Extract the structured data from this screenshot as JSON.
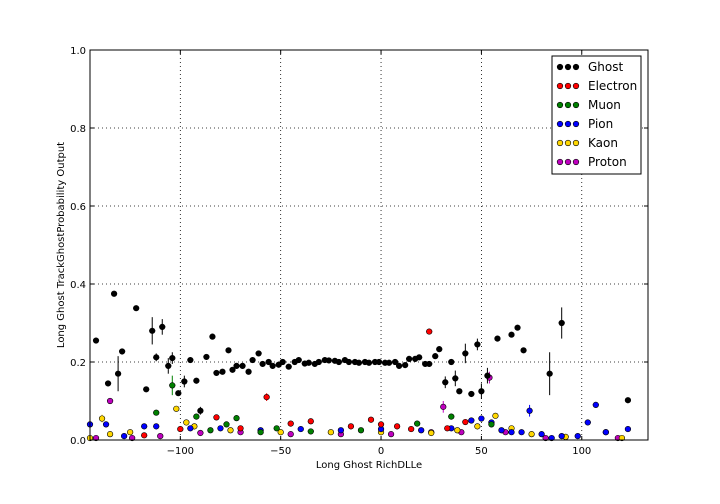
{
  "chart_data": {
    "type": "scatter",
    "title": "",
    "xlabel": "Long Ghost RichDLLe",
    "ylabel": "Long Ghost TrackGhostProbability Output",
    "xlim": [
      -145,
      133
    ],
    "ylim": [
      0,
      1
    ],
    "xticks": [
      -100,
      -50,
      0,
      50,
      100
    ],
    "yticks": [
      0.0,
      0.2,
      0.4,
      0.6,
      0.8,
      1.0
    ],
    "grid": true,
    "legend_position": "top-right",
    "series": [
      {
        "name": "Ghost",
        "color": "#000000",
        "points": [
          [
            -142,
            0.255,
            0.004
          ],
          [
            -136,
            0.145,
            0.004
          ],
          [
            -133,
            0.375,
            0.004
          ],
          [
            -131,
            0.17,
            0.045
          ],
          [
            -129,
            0.227,
            0.004
          ],
          [
            -122,
            0.338,
            0.004
          ],
          [
            -117,
            0.13,
            0.004
          ],
          [
            -114,
            0.28,
            0.035
          ],
          [
            -112,
            0.212,
            0.01
          ],
          [
            -109,
            0.29,
            0.02
          ],
          [
            -106,
            0.19,
            0.02
          ],
          [
            -104,
            0.21,
            0.015
          ],
          [
            -101,
            0.12,
            0.004
          ],
          [
            -98,
            0.15,
            0.015
          ],
          [
            -95,
            0.205,
            0.004
          ],
          [
            -92,
            0.152,
            0.004
          ],
          [
            -90,
            0.075,
            0.01
          ],
          [
            -87,
            0.213,
            0.004
          ],
          [
            -84,
            0.265,
            0.004
          ],
          [
            -82,
            0.172,
            0.004
          ],
          [
            -79,
            0.175,
            0.004
          ],
          [
            -76,
            0.23,
            0.004
          ],
          [
            -74,
            0.18,
            0.004
          ],
          [
            -72,
            0.19,
            0.004
          ],
          [
            -69,
            0.19,
            0.004
          ],
          [
            -66,
            0.175,
            0.004
          ],
          [
            -64,
            0.205,
            0.004
          ],
          [
            -61,
            0.222,
            0.004
          ],
          [
            -59,
            0.195,
            0.004
          ],
          [
            -56,
            0.2,
            0.004
          ],
          [
            -54,
            0.19,
            0.004
          ],
          [
            -51,
            0.193,
            0.004
          ],
          [
            -49,
            0.2,
            0.004
          ],
          [
            -46,
            0.188,
            0.004
          ],
          [
            -43,
            0.2,
            0.004
          ],
          [
            -41,
            0.205,
            0.004
          ],
          [
            -38,
            0.196,
            0.004
          ],
          [
            -36,
            0.198,
            0.004
          ],
          [
            -33,
            0.195,
            0.004
          ],
          [
            -31,
            0.2,
            0.004
          ],
          [
            -28,
            0.205,
            0.004
          ],
          [
            -26,
            0.204,
            0.004
          ],
          [
            -23,
            0.203,
            0.004
          ],
          [
            -21,
            0.2,
            0.004
          ],
          [
            -18,
            0.205,
            0.004
          ],
          [
            -16,
            0.2,
            0.004
          ],
          [
            -13,
            0.2,
            0.004
          ],
          [
            -11,
            0.198,
            0.004
          ],
          [
            -8,
            0.2,
            0.004
          ],
          [
            -6,
            0.198,
            0.004
          ],
          [
            -3,
            0.2,
            0.004
          ],
          [
            -1,
            0.2,
            0.004
          ],
          [
            2,
            0.198,
            0.004
          ],
          [
            4,
            0.198,
            0.004
          ],
          [
            7,
            0.2,
            0.004
          ],
          [
            9,
            0.19,
            0.004
          ],
          [
            12,
            0.192,
            0.004
          ],
          [
            14,
            0.208,
            0.004
          ],
          [
            17,
            0.208,
            0.004
          ],
          [
            19,
            0.212,
            0.004
          ],
          [
            22,
            0.195,
            0.004
          ],
          [
            24,
            0.195,
            0.004
          ],
          [
            27,
            0.215,
            0.004
          ],
          [
            29,
            0.233,
            0.004
          ],
          [
            32,
            0.148,
            0.015
          ],
          [
            35,
            0.2,
            0.004
          ],
          [
            37,
            0.158,
            0.02
          ],
          [
            39,
            0.125,
            0.004
          ],
          [
            42,
            0.222,
            0.025
          ],
          [
            45,
            0.118,
            0.004
          ],
          [
            48,
            0.245,
            0.015
          ],
          [
            50,
            0.125,
            0.02
          ],
          [
            53,
            0.165,
            0.02
          ],
          [
            58,
            0.26,
            0.004
          ],
          [
            65,
            0.27,
            0.004
          ],
          [
            68,
            0.288,
            0.004
          ],
          [
            71,
            0.23,
            0.004
          ],
          [
            84,
            0.17,
            0.055
          ],
          [
            90,
            0.3,
            0.04
          ],
          [
            123,
            0.102,
            0.004
          ]
        ]
      },
      {
        "name": "Electron",
        "color": "#ff0000",
        "points": [
          [
            -82,
            0.058,
            0.004
          ],
          [
            -57,
            0.11,
            0.01
          ],
          [
            -45,
            0.042,
            0.004
          ],
          [
            -35,
            0.048,
            0.004
          ],
          [
            -15,
            0.035,
            0.004
          ],
          [
            -5,
            0.052,
            0.004
          ],
          [
            8,
            0.035,
            0.004
          ],
          [
            24,
            0.278,
            0.004
          ],
          [
            33,
            0.03,
            0.004
          ],
          [
            42,
            0.046,
            0.004
          ],
          [
            -118,
            0.012,
            0.004
          ],
          [
            -100,
            0.028,
            0.004
          ],
          [
            -70,
            0.03,
            0.004
          ],
          [
            0,
            0.04,
            0.004
          ],
          [
            15,
            0.028,
            0.004
          ]
        ]
      },
      {
        "name": "Muon",
        "color": "#008000",
        "points": [
          [
            -112,
            0.07,
            0.004
          ],
          [
            -104,
            0.14,
            0.025
          ],
          [
            -92,
            0.06,
            0.004
          ],
          [
            -77,
            0.04,
            0.004
          ],
          [
            -72,
            0.056,
            0.004
          ],
          [
            -52,
            0.03,
            0.004
          ],
          [
            -35,
            0.022,
            0.004
          ],
          [
            -10,
            0.025,
            0.004
          ],
          [
            18,
            0.042,
            0.004
          ],
          [
            35,
            0.06,
            0.004
          ],
          [
            55,
            0.04,
            0.004
          ],
          [
            -85,
            0.025,
            0.004
          ],
          [
            -60,
            0.02,
            0.004
          ]
        ]
      },
      {
        "name": "Pion",
        "color": "#0000ff",
        "points": [
          [
            -145,
            0.04,
            0.004
          ],
          [
            -137,
            0.04,
            0.004
          ],
          [
            -128,
            0.01,
            0.004
          ],
          [
            -118,
            0.035,
            0.004
          ],
          [
            -112,
            0.035,
            0.004
          ],
          [
            -95,
            0.03,
            0.004
          ],
          [
            -80,
            0.03,
            0.004
          ],
          [
            -60,
            0.025,
            0.004
          ],
          [
            -40,
            0.028,
            0.004
          ],
          [
            -20,
            0.025,
            0.004
          ],
          [
            0,
            0.028,
            0.004
          ],
          [
            20,
            0.025,
            0.004
          ],
          [
            35,
            0.03,
            0.004
          ],
          [
            45,
            0.05,
            0.004
          ],
          [
            50,
            0.055,
            0.004
          ],
          [
            55,
            0.045,
            0.004
          ],
          [
            60,
            0.025,
            0.004
          ],
          [
            65,
            0.02,
            0.004
          ],
          [
            70,
            0.02,
            0.004
          ],
          [
            74,
            0.075,
            0.015
          ],
          [
            80,
            0.015,
            0.004
          ],
          [
            90,
            0.01,
            0.004
          ],
          [
            98,
            0.01,
            0.004
          ],
          [
            103,
            0.045,
            0.004
          ],
          [
            107,
            0.09,
            0.004
          ],
          [
            112,
            0.02,
            0.004
          ],
          [
            123,
            0.028,
            0.004
          ],
          [
            85,
            0.005,
            0.004
          ]
        ]
      },
      {
        "name": "Kaon",
        "color": "#ffd700",
        "points": [
          [
            -139,
            0.055,
            0.01
          ],
          [
            -135,
            0.015,
            0.004
          ],
          [
            -125,
            0.02,
            0.004
          ],
          [
            -102,
            0.08,
            0.004
          ],
          [
            -97,
            0.045,
            0.004
          ],
          [
            -93,
            0.035,
            0.004
          ],
          [
            -75,
            0.025,
            0.004
          ],
          [
            -50,
            0.02,
            0.004
          ],
          [
            -25,
            0.02,
            0.004
          ],
          [
            0,
            0.02,
            0.004
          ],
          [
            25,
            0.018,
            0.004
          ],
          [
            38,
            0.025,
            0.004
          ],
          [
            48,
            0.035,
            0.004
          ],
          [
            57,
            0.062,
            0.004
          ],
          [
            65,
            0.03,
            0.004
          ],
          [
            75,
            0.015,
            0.004
          ],
          [
            92,
            0.008,
            0.004
          ],
          [
            120,
            0.005,
            0.004
          ],
          [
            -145,
            0.005,
            0.004
          ]
        ]
      },
      {
        "name": "Proton",
        "color": "#bf00bf",
        "points": [
          [
            -135,
            0.1,
            0.004
          ],
          [
            -124,
            0.005,
            0.004
          ],
          [
            -110,
            0.01,
            0.004
          ],
          [
            -90,
            0.018,
            0.004
          ],
          [
            -70,
            0.02,
            0.004
          ],
          [
            -45,
            0.015,
            0.004
          ],
          [
            -20,
            0.015,
            0.004
          ],
          [
            5,
            0.015,
            0.004
          ],
          [
            25,
            0.02,
            0.004
          ],
          [
            31,
            0.085,
            0.015
          ],
          [
            40,
            0.02,
            0.004
          ],
          [
            54,
            0.16,
            0.015
          ],
          [
            62,
            0.02,
            0.004
          ],
          [
            82,
            0.005,
            0.004
          ],
          [
            112,
            0.02,
            0.004
          ],
          [
            118,
            0.005,
            0.004
          ],
          [
            -142,
            0.005,
            0.004
          ]
        ]
      }
    ]
  }
}
